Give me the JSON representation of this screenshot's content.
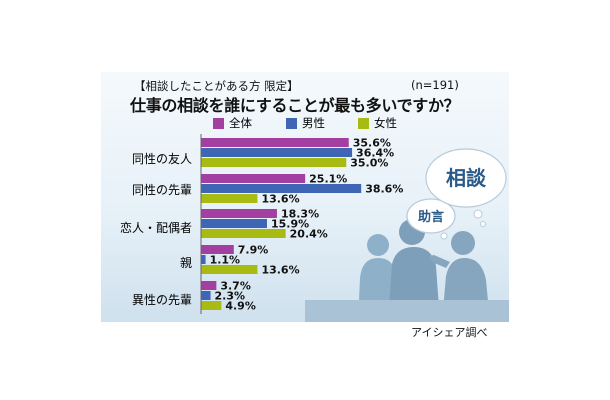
{
  "subtitle": "【相談したことがある方 限定】",
  "sample": "(n=191)",
  "title": "仕事の相談を誰にすることが最も多いですか？",
  "credit": "アイシェア調べ",
  "bubbles": {
    "small": "助言",
    "large": "相談"
  },
  "colors": {
    "all": "#a23fa0",
    "male": "#3f66b5",
    "female": "#a8bb12"
  },
  "chart_data": {
    "type": "bar",
    "orientation": "horizontal",
    "categories": [
      "同性の友人",
      "同性の先輩",
      "恋人・配偶者",
      "親",
      "異性の先輩"
    ],
    "series": [
      {
        "name": "全体",
        "values": [
          35.6,
          25.1,
          18.3,
          7.9,
          3.7
        ]
      },
      {
        "name": "男性",
        "values": [
          36.4,
          38.6,
          15.9,
          1.1,
          2.3
        ]
      },
      {
        "name": "女性",
        "values": [
          35.0,
          13.6,
          20.4,
          13.6,
          4.9
        ]
      }
    ],
    "value_labels": [
      [
        "35.6%",
        "36.4%",
        "35.0%"
      ],
      [
        "25.1%",
        "38.6%",
        "13.6%"
      ],
      [
        "18.3%",
        "15.9%",
        "20.4%"
      ],
      [
        "7.9%",
        "1.1%",
        "13.6%"
      ],
      [
        "3.7%",
        "2.3%",
        "4.9%"
      ]
    ],
    "xlim": [
      0,
      40
    ],
    "legend": "top"
  }
}
